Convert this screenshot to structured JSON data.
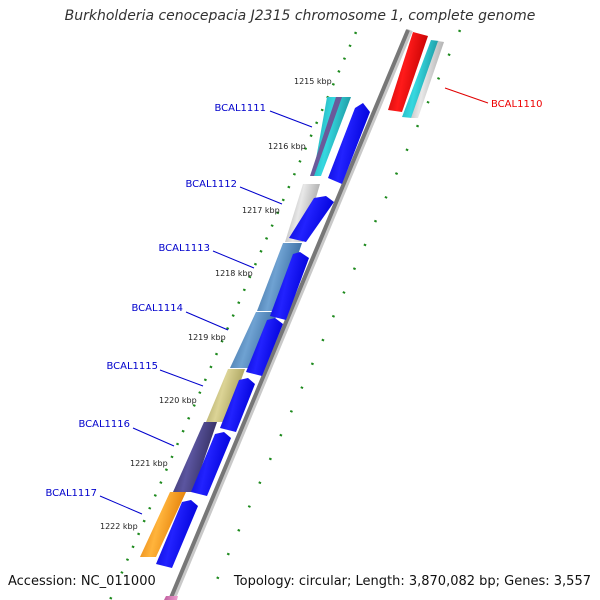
{
  "title": "Burkholderia cenocepacia J2315 chromosome 1, complete genome",
  "accession": "Accession: NC_011000",
  "stats": "Topology: circular; Length: 3,870,082 bp; Genes: 3,557",
  "ticks": [
    "1215 kbp",
    "1216 kbp",
    "1217 kbp",
    "1218 kbp",
    "1219 kbp",
    "1220 kbp",
    "1221 kbp",
    "1222 kbp"
  ],
  "genes": [
    {
      "name": "BCAL1110",
      "color": "#ff0000"
    },
    {
      "name": "BCAL1111",
      "color": "#0000cc"
    },
    {
      "name": "BCAL1112",
      "color": "#0000cc"
    },
    {
      "name": "BCAL1113",
      "color": "#0000cc"
    },
    {
      "name": "BCAL1114",
      "color": "#0000cc"
    },
    {
      "name": "BCAL1115",
      "color": "#0000cc"
    },
    {
      "name": "BCAL1116",
      "color": "#0000cc"
    },
    {
      "name": "BCAL1117",
      "color": "#0000cc"
    }
  ],
  "colors": {
    "backbone": "#8a8a8a",
    "cds": "#0000ff",
    "gc_dots": "#1e8a1e",
    "label_red": "#ee0000",
    "label_blue": "#0000cc"
  }
}
